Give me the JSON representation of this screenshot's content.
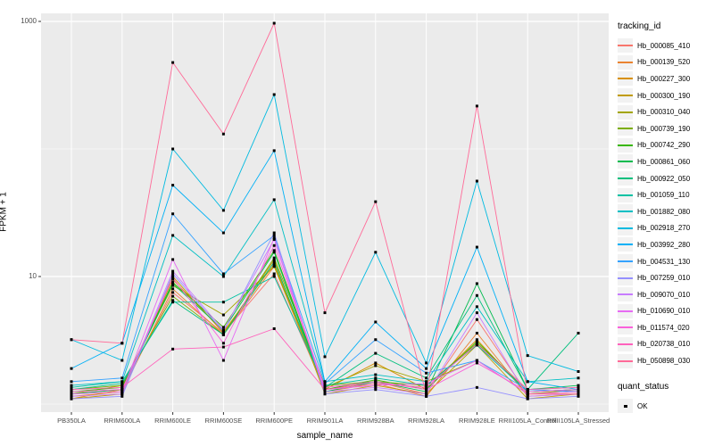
{
  "axes": {
    "x": {
      "title": "sample_name"
    },
    "y": {
      "title": "FPKM + 1",
      "tick_labels": [
        "1000",
        "10"
      ]
    }
  },
  "legend": {
    "tracking_title": "tracking_id",
    "quant_title": "quant_status",
    "quant_items": [
      {
        "label": "OK",
        "shape": "black-square"
      }
    ]
  },
  "chart_data": {
    "type": "line",
    "title": "",
    "xlabel": "sample_name",
    "ylabel": "FPKM + 1",
    "y_scale": "log10",
    "ylim": [
      0.93,
      1100
    ],
    "y_major_ticks": [
      1000,
      10
    ],
    "y_minor_gridlines": [
      100,
      1
    ],
    "grid": true,
    "legend_position": "right",
    "panel_background": "#EBEBEB",
    "gridline_color": "#FFFFFF",
    "point_color": "#000000",
    "point_shape": "square",
    "categories": [
      "PB350LA",
      "RRIM600LA",
      "RRIM600LE",
      "RRIM600SE",
      "RRIM600PE",
      "RRIM901LA",
      "RRIM928BA",
      "RRIM928LA",
      "RRIM928LE",
      "RRII105LA_Control",
      "RRII105LA_Stressed"
    ],
    "series": [
      {
        "name": "Hb_000085_410",
        "color": "#F8766D",
        "values": [
          1.2,
          1.3,
          7.5,
          3.6,
          10.5,
          1.3,
          1.5,
          1.2,
          4.6,
          1.2,
          1.2
        ]
      },
      {
        "name": "Hb_000139_520",
        "color": "#EA8331",
        "values": [
          1.15,
          1.25,
          8.0,
          3.5,
          12.0,
          1.25,
          1.45,
          1.15,
          3.6,
          1.15,
          1.2
        ]
      },
      {
        "name": "Hb_000227_300",
        "color": "#D89000",
        "values": [
          1.1,
          1.3,
          9.5,
          3.7,
          12.5,
          1.3,
          2.1,
          1.3,
          3.2,
          1.2,
          1.25
        ]
      },
      {
        "name": "Hb_000300_190",
        "color": "#C09B00",
        "values": [
          1.1,
          1.2,
          10.0,
          3.6,
          13.5,
          1.2,
          1.4,
          1.2,
          2.9,
          1.1,
          1.2
        ]
      },
      {
        "name": "Hb_000310_040",
        "color": "#A3A500",
        "values": [
          1.2,
          1.4,
          8.5,
          5.0,
          12.0,
          1.35,
          2.0,
          1.5,
          2.2,
          1.2,
          1.3
        ]
      },
      {
        "name": "Hb_000739_190",
        "color": "#7CAE00",
        "values": [
          1.3,
          1.4,
          7.0,
          3.5,
          14.0,
          1.4,
          1.5,
          1.4,
          3.0,
          1.3,
          1.35
        ]
      },
      {
        "name": "Hb_000742_290",
        "color": "#39B600",
        "values": [
          1.25,
          1.35,
          9.0,
          4.0,
          16.0,
          1.3,
          1.55,
          1.3,
          3.1,
          1.25,
          1.3
        ]
      },
      {
        "name": "Hb_000861_060",
        "color": "#00BB4E",
        "values": [
          1.2,
          1.3,
          8.8,
          3.8,
          15.5,
          1.25,
          1.5,
          1.25,
          8.8,
          1.3,
          1.4
        ]
      },
      {
        "name": "Hb_000922_050",
        "color": "#00BF7D",
        "values": [
          1.3,
          1.45,
          6.5,
          3.5,
          13.0,
          1.35,
          2.5,
          1.6,
          7.1,
          1.3,
          3.6
        ]
      },
      {
        "name": "Hb_001059_110",
        "color": "#00C1A3",
        "values": [
          1.35,
          1.5,
          6.3,
          6.3,
          10.0,
          1.4,
          1.6,
          1.4,
          2.9,
          1.25,
          1.3
        ]
      },
      {
        "name": "Hb_001882_080",
        "color": "#00BFC4",
        "values": [
          1.4,
          1.5,
          21.0,
          10.0,
          40.0,
          1.5,
          1.7,
          1.5,
          5.8,
          1.5,
          1.6
        ]
      },
      {
        "name": "Hb_002918_270",
        "color": "#00BAE0",
        "values": [
          3.2,
          2.2,
          100,
          33,
          267,
          2.35,
          15.5,
          2.1,
          56,
          2.4,
          1.8
        ]
      },
      {
        "name": "Hb_003992_280",
        "color": "#00B0F6",
        "values": [
          1.9,
          3.0,
          52,
          22,
          97,
          1.5,
          4.4,
          1.9,
          17,
          1.5,
          1.3
        ]
      },
      {
        "name": "Hb_004531_130",
        "color": "#35A2FF",
        "values": [
          1.5,
          1.6,
          31,
          10.5,
          21,
          1.45,
          3.2,
          1.75,
          2.2,
          1.3,
          1.25
        ]
      },
      {
        "name": "Hb_007259_010",
        "color": "#9590FF",
        "values": [
          1.1,
          1.15,
          10.5,
          3.7,
          22,
          1.2,
          1.3,
          1.15,
          1.35,
          1.1,
          1.15
        ]
      },
      {
        "name": "Hb_009070_010",
        "color": "#C77CFF",
        "values": [
          1.15,
          1.2,
          11.0,
          3.8,
          19.5,
          1.25,
          1.35,
          1.2,
          5.2,
          1.15,
          1.2
        ]
      },
      {
        "name": "Hb_010690_010",
        "color": "#E76BF3",
        "values": [
          1.2,
          1.25,
          13.6,
          2.2,
          20.0,
          1.3,
          1.4,
          1.45,
          2.2,
          1.2,
          1.25
        ]
      },
      {
        "name": "Hb_011574_020",
        "color": "#FA62DB",
        "values": [
          1.25,
          1.3,
          9.8,
          3.0,
          17.5,
          1.35,
          1.5,
          1.3,
          2.1,
          1.25,
          1.3
        ]
      },
      {
        "name": "Hb_020738_010",
        "color": "#FF62BC",
        "values": [
          1.3,
          1.35,
          2.7,
          2.8,
          3.9,
          1.3,
          1.45,
          1.35,
          2.95,
          1.3,
          1.35
        ]
      },
      {
        "name": "Hb_050898_030",
        "color": "#FF6A98",
        "values": [
          3.2,
          3.0,
          476,
          131,
          968,
          5.2,
          38.6,
          1.2,
          217,
          1.2,
          1.2
        ]
      }
    ]
  }
}
